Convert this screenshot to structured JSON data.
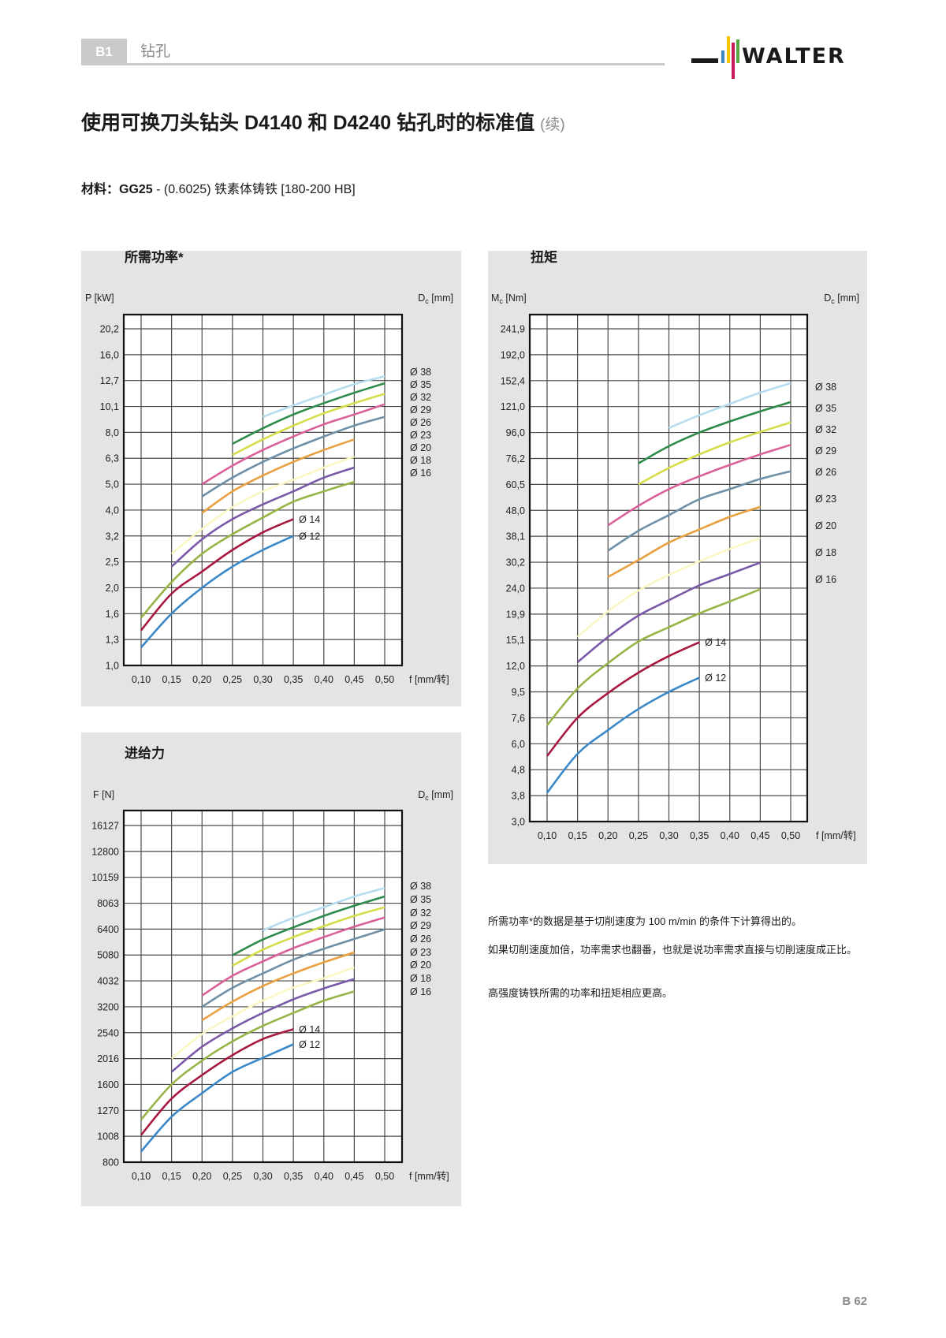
{
  "header": {
    "section_code": "B1",
    "section_name": "钻孔",
    "logo_text": "WALTER",
    "logo_colors": [
      "#1a1a1a",
      "#3b88c8",
      "#f2c500",
      "#c8195a",
      "#58a845"
    ]
  },
  "title": {
    "main": "使用可换刀头钻头 D4140 和 D4240 钻孔时的标准值",
    "continued": "(续)"
  },
  "material": {
    "label": "材料：",
    "grade": "GG25",
    "rest": " - (0.6025) 铁素体铸铁 [180-200 HB]"
  },
  "panels": {
    "power_title": "所需功率*",
    "torque_title": "扭矩",
    "feed_title": "进给力"
  },
  "notes": [
    "所需功率*的数据是基于切削速度为 100 m/min 的条件下计算得出的。",
    "如果切削速度加倍，功率需求也翻番，也就是说功率需求直接与切削速度成正比。",
    "高强度铸铁所需的功率和扭矩相应更高。"
  ],
  "page_number": "B 62",
  "chart_data": [
    {
      "type": "line",
      "title": "所需功率*",
      "ylabel": "P [kW]",
      "xlabel": "f [mm/转]",
      "dc_label": {
        "symbol": "D",
        "sub": "c",
        "unit": " [mm]"
      },
      "y_scale": "log",
      "grid": true,
      "x_ticks": [
        "0,10",
        "0,15",
        "0,20",
        "0,25",
        "0,30",
        "0,35",
        "0,40",
        "0,45",
        "0,50"
      ],
      "y_ticks": [
        "20,2",
        "16,0",
        "12,7",
        "10,1",
        "8,0",
        "6,3",
        "5,0",
        "4,0",
        "3,2",
        "2,5",
        "2,0",
        "1,6",
        "1,3",
        "1,0"
      ],
      "series": [
        {
          "name": "Ø 12",
          "color": "#3b88c8",
          "x": [
            0.1,
            0.15,
            0.2,
            0.25,
            0.3,
            0.35
          ],
          "y": [
            1.2,
            1.6,
            2.0,
            2.4,
            2.8,
            3.2
          ]
        },
        {
          "name": "Ø 14",
          "color": "#a8183f",
          "x": [
            0.1,
            0.15,
            0.2,
            0.25,
            0.3,
            0.35
          ],
          "y": [
            1.4,
            1.9,
            2.3,
            2.8,
            3.3,
            3.7
          ]
        },
        {
          "name": "Ø 16",
          "color": "#97b547",
          "x": [
            0.1,
            0.15,
            0.2,
            0.25,
            0.3,
            0.35,
            0.4,
            0.45
          ],
          "y": [
            1.55,
            2.1,
            2.7,
            3.25,
            3.75,
            4.3,
            4.7,
            5.1
          ]
        },
        {
          "name": "Ø 18",
          "color": "#7a5aa8",
          "x": [
            0.15,
            0.2,
            0.25,
            0.3,
            0.35,
            0.4,
            0.45
          ],
          "y": [
            2.4,
            3.1,
            3.7,
            4.2,
            4.7,
            5.3,
            5.8
          ]
        },
        {
          "name": "Ø 20",
          "color": "#fbf7c4",
          "x": [
            0.15,
            0.2,
            0.25,
            0.3,
            0.35,
            0.4,
            0.45
          ],
          "y": [
            2.7,
            3.4,
            4.1,
            4.7,
            5.2,
            5.8,
            6.4
          ]
        },
        {
          "name": "Ø 23",
          "color": "#e8a040",
          "x": [
            0.2,
            0.25,
            0.3,
            0.35,
            0.4,
            0.45
          ],
          "y": [
            3.9,
            4.7,
            5.4,
            6.1,
            6.8,
            7.5
          ]
        },
        {
          "name": "Ø 26",
          "color": "#6e8fa5",
          "x": [
            0.2,
            0.25,
            0.3,
            0.35,
            0.4,
            0.45,
            0.5
          ],
          "y": [
            4.5,
            5.3,
            6.1,
            6.9,
            7.7,
            8.5,
            9.2
          ]
        },
        {
          "name": "Ø 29",
          "color": "#d9609a",
          "x": [
            0.2,
            0.25,
            0.3,
            0.35,
            0.4,
            0.45,
            0.5
          ],
          "y": [
            5.0,
            5.9,
            6.8,
            7.7,
            8.6,
            9.4,
            10.3
          ]
        },
        {
          "name": "Ø 32",
          "color": "#d7dd4a",
          "x": [
            0.25,
            0.3,
            0.35,
            0.4,
            0.45,
            0.5
          ],
          "y": [
            6.5,
            7.5,
            8.5,
            9.5,
            10.4,
            11.3
          ]
        },
        {
          "name": "Ø 35",
          "color": "#2e8b4a",
          "x": [
            0.25,
            0.3,
            0.35,
            0.4,
            0.45,
            0.5
          ],
          "y": [
            7.2,
            8.3,
            9.4,
            10.4,
            11.4,
            12.4
          ]
        },
        {
          "name": "Ø 38",
          "color": "#b6dcf0",
          "x": [
            0.3,
            0.35,
            0.4,
            0.45,
            0.5
          ],
          "y": [
            9.2,
            10.2,
            11.2,
            12.3,
            13.2
          ]
        }
      ]
    },
    {
      "type": "line",
      "title": "扭矩",
      "ylabel": "M",
      "ylabel_sub": "c",
      "ylabel_unit": " [Nm]",
      "xlabel": "f [mm/转]",
      "dc_label": {
        "symbol": "D",
        "sub": "c",
        "unit": " [mm]"
      },
      "y_scale": "log",
      "grid": true,
      "x_ticks": [
        "0,10",
        "0,15",
        "0,20",
        "0,25",
        "0,30",
        "0,35",
        "0,40",
        "0,45",
        "0,50"
      ],
      "y_ticks": [
        "241,9",
        "192,0",
        "152,4",
        "121,0",
        "96,0",
        "76,2",
        "60,5",
        "48,0",
        "38,1",
        "30,2",
        "24,0",
        "19,9",
        "15,1",
        "12,0",
        "9,5",
        "7,6",
        "6,0",
        "4,8",
        "3,8",
        "3,0"
      ],
      "series": [
        {
          "name": "Ø 12",
          "color": "#3b88c8",
          "x": [
            0.1,
            0.15,
            0.2,
            0.25,
            0.3,
            0.35
          ],
          "y": [
            3.9,
            5.5,
            6.8,
            8.2,
            9.5,
            10.8
          ]
        },
        {
          "name": "Ø 14",
          "color": "#a8183f",
          "x": [
            0.1,
            0.15,
            0.2,
            0.25,
            0.3,
            0.35
          ],
          "y": [
            5.4,
            7.6,
            9.4,
            11.3,
            13.1,
            14.8
          ]
        },
        {
          "name": "Ø 16",
          "color": "#97b547",
          "x": [
            0.1,
            0.15,
            0.2,
            0.25,
            0.3,
            0.35,
            0.4,
            0.45
          ],
          "y": [
            7.1,
            9.8,
            12.3,
            14.9,
            17.3,
            20.0,
            21.8,
            23.8
          ]
        },
        {
          "name": "Ø 18",
          "color": "#7a5aa8",
          "x": [
            0.15,
            0.2,
            0.25,
            0.3,
            0.35,
            0.4,
            0.45
          ],
          "y": [
            12.4,
            15.6,
            19.6,
            22.0,
            24.6,
            27.2,
            30.1
          ]
        },
        {
          "name": "Ø 20",
          "color": "#fbf7c4",
          "x": [
            0.15,
            0.2,
            0.25,
            0.3,
            0.35,
            0.4,
            0.45
          ],
          "y": [
            15.6,
            20.3,
            23.6,
            27.0,
            30.4,
            34.0,
            37.5
          ]
        },
        {
          "name": "Ø 23",
          "color": "#e8a040",
          "x": [
            0.2,
            0.25,
            0.3,
            0.35,
            0.4,
            0.45
          ],
          "y": [
            26.5,
            30.8,
            36.0,
            40.5,
            45.3,
            49.5
          ]
        },
        {
          "name": "Ø 26",
          "color": "#6e8fa5",
          "x": [
            0.2,
            0.25,
            0.3,
            0.35,
            0.4,
            0.45,
            0.5
          ],
          "y": [
            33.5,
            40,
            46,
            53,
            58,
            63.5,
            68
          ]
        },
        {
          "name": "Ø 29",
          "color": "#d9609a",
          "x": [
            0.2,
            0.25,
            0.3,
            0.35,
            0.4,
            0.45,
            0.5
          ],
          "y": [
            42,
            50,
            58,
            65,
            72,
            79,
            86
          ]
        },
        {
          "name": "Ø 32",
          "color": "#d7dd4a",
          "x": [
            0.25,
            0.3,
            0.35,
            0.4,
            0.45,
            0.5
          ],
          "y": [
            60.5,
            70,
            79,
            88,
            96.5,
            105
          ]
        },
        {
          "name": "Ø 35",
          "color": "#2e8b4a",
          "x": [
            0.25,
            0.3,
            0.35,
            0.4,
            0.45,
            0.5
          ],
          "y": [
            73,
            85,
            96,
            106,
            116,
            126
          ]
        },
        {
          "name": "Ø 38",
          "color": "#b6dcf0",
          "x": [
            0.3,
            0.35,
            0.4,
            0.45,
            0.5
          ],
          "y": [
            100,
            112,
            124,
            137,
            149
          ]
        }
      ]
    },
    {
      "type": "line",
      "title": "进给力",
      "ylabel": "F [N]",
      "xlabel": "f [mm/转]",
      "dc_label": {
        "symbol": "D",
        "sub": "c",
        "unit": " [mm]"
      },
      "y_scale": "log",
      "grid": true,
      "x_ticks": [
        "0,10",
        "0,15",
        "0,20",
        "0,25",
        "0,30",
        "0,35",
        "0,40",
        "0,45",
        "0,50"
      ],
      "y_ticks": [
        "16127",
        "12800",
        "10159",
        "8063",
        "6400",
        "5080",
        "4032",
        "3200",
        "2540",
        "2016",
        "1600",
        "1270",
        "1008",
        "800"
      ],
      "series": [
        {
          "name": "Ø 12",
          "color": "#3b88c8",
          "x": [
            0.1,
            0.15,
            0.2,
            0.25,
            0.3,
            0.35
          ],
          "y": [
            880,
            1200,
            1480,
            1790,
            2030,
            2290
          ]
        },
        {
          "name": "Ø 14",
          "color": "#a8183f",
          "x": [
            0.1,
            0.15,
            0.2,
            0.25,
            0.3,
            0.35
          ],
          "y": [
            1020,
            1410,
            1740,
            2080,
            2400,
            2620
          ]
        },
        {
          "name": "Ø 16",
          "color": "#97b547",
          "x": [
            0.1,
            0.15,
            0.2,
            0.25,
            0.3,
            0.35,
            0.4,
            0.45
          ],
          "y": [
            1170,
            1600,
            1980,
            2350,
            2700,
            3030,
            3380,
            3670
          ]
        },
        {
          "name": "Ø 18",
          "color": "#7a5aa8",
          "x": [
            0.15,
            0.2,
            0.25,
            0.3,
            0.35,
            0.4,
            0.45
          ],
          "y": [
            1790,
            2240,
            2640,
            3030,
            3420,
            3770,
            4100
          ]
        },
        {
          "name": "Ø 20",
          "color": "#fbf7c4",
          "x": [
            0.15,
            0.2,
            0.25,
            0.3,
            0.35,
            0.4,
            0.45
          ],
          "y": [
            2016,
            2510,
            2940,
            3380,
            3800,
            4130,
            4550
          ]
        },
        {
          "name": "Ø 23",
          "color": "#e8a040",
          "x": [
            0.2,
            0.25,
            0.3,
            0.35,
            0.4,
            0.45
          ],
          "y": [
            2840,
            3350,
            3850,
            4310,
            4760,
            5200
          ]
        },
        {
          "name": "Ø 26",
          "color": "#6e8fa5",
          "x": [
            0.2,
            0.25,
            0.3,
            0.35,
            0.4,
            0.45,
            0.5
          ],
          "y": [
            3200,
            3790,
            4310,
            4870,
            5370,
            5860,
            6380
          ]
        },
        {
          "name": "Ø 29",
          "color": "#d9609a",
          "x": [
            0.2,
            0.25,
            0.3,
            0.35,
            0.4,
            0.45,
            0.5
          ],
          "y": [
            3540,
            4220,
            4800,
            5400,
            5960,
            6540,
            7100
          ]
        },
        {
          "name": "Ø 32",
          "color": "#d7dd4a",
          "x": [
            0.25,
            0.3,
            0.35,
            0.4,
            0.45,
            0.5
          ],
          "y": [
            4620,
            5330,
            5960,
            6570,
            7200,
            7780
          ]
        },
        {
          "name": "Ø 35",
          "color": "#2e8b4a",
          "x": [
            0.25,
            0.3,
            0.35,
            0.4,
            0.45,
            0.5
          ],
          "y": [
            5070,
            5830,
            6500,
            7200,
            7880,
            8560
          ]
        },
        {
          "name": "Ø 38",
          "color": "#b6dcf0",
          "x": [
            0.3,
            0.35,
            0.4,
            0.45,
            0.5
          ],
          "y": [
            6330,
            7080,
            7780,
            8560,
            9240
          ]
        }
      ]
    }
  ]
}
